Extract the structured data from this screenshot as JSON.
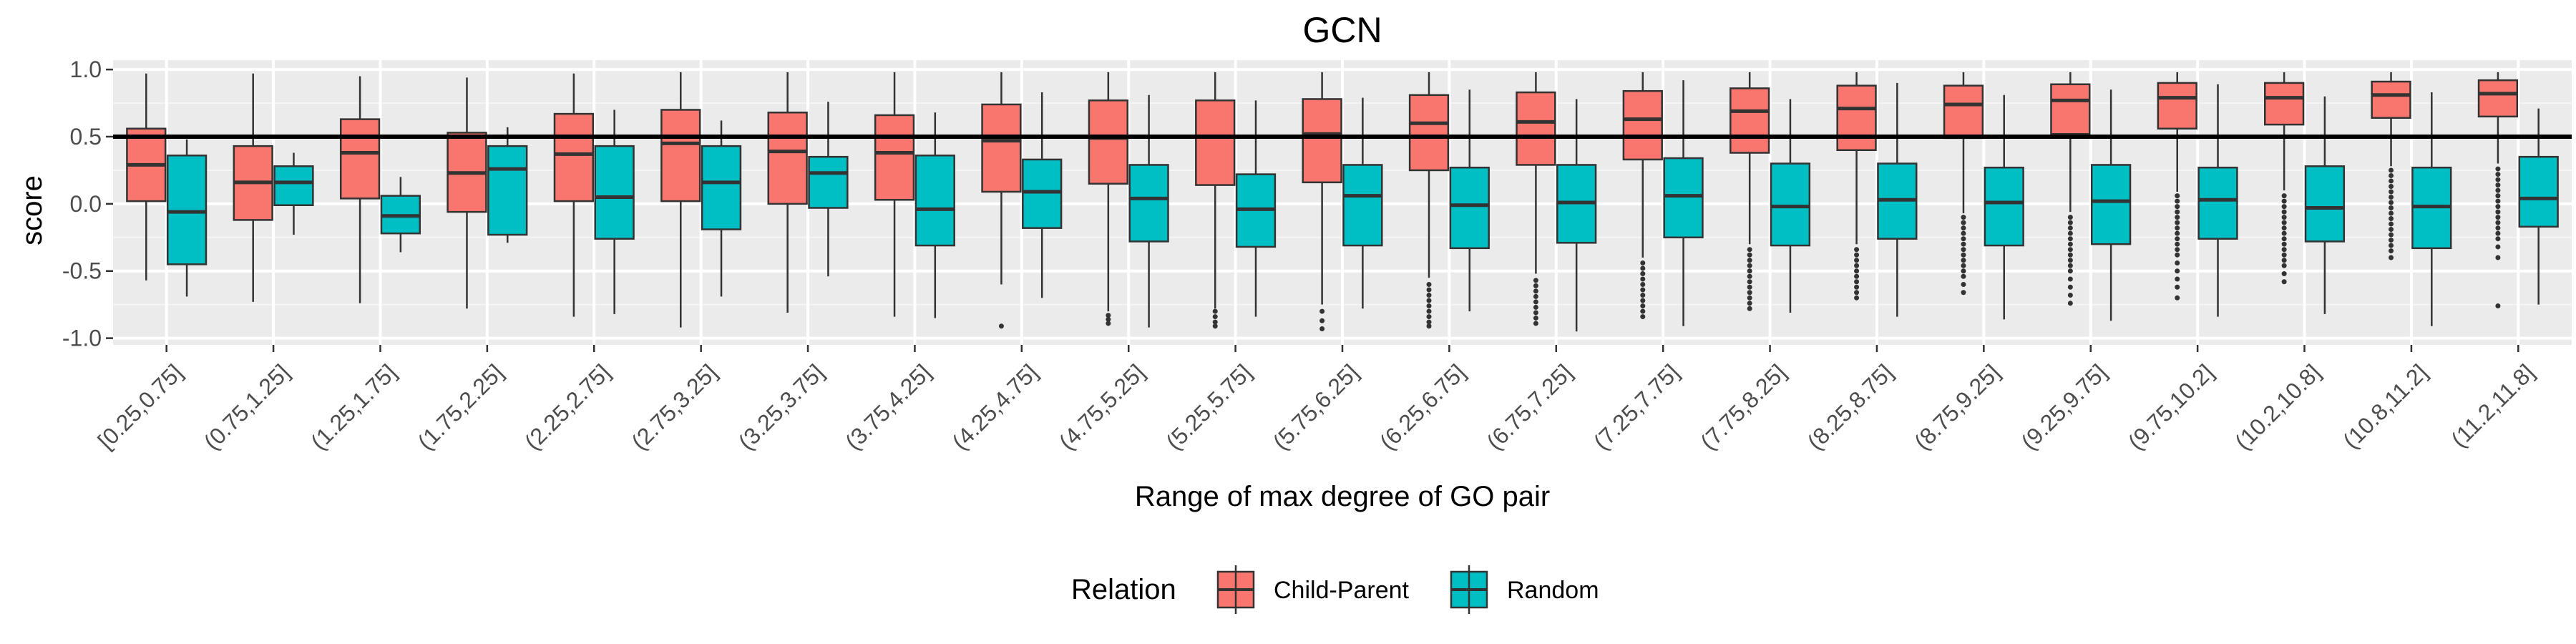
{
  "chart_data": {
    "type": "box",
    "title": "GCN",
    "xlabel": "Range of max degree of GO pair",
    "ylabel": "score",
    "ylim": [
      -1.05,
      1.07
    ],
    "yticks": [
      1.0,
      0.5,
      0.0,
      -0.5,
      -1.0
    ],
    "ytick_labels": [
      "1.0",
      "0.5",
      "0.0",
      "-0.5",
      "-1.0"
    ],
    "reference_line": 0.5,
    "grid": true,
    "legend_position": "bottom",
    "legend_title": "Relation",
    "categories": [
      "[0.25,0.75]",
      "(0.75,1.25]",
      "(1.25,1.75]",
      "(1.75,2.25]",
      "(2.25,2.75]",
      "(2.75,3.25]",
      "(3.25,3.75]",
      "(3.75,4.25]",
      "(4.25,4.75]",
      "(4.75,5.25]",
      "(5.25,5.75]",
      "(5.75,6.25]",
      "(6.25,6.75]",
      "(6.75,7.25]",
      "(7.25,7.75]",
      "(7.75,8.25]",
      "(8.25,8.75]",
      "(8.75,9.25]",
      "(9.25,9.75]",
      "(9.75,10.2]",
      "(10.2,10.8]",
      "(10.8,11.2]",
      "(11.2,11.8]"
    ],
    "series": [
      {
        "name": "Child-Parent",
        "color": "#F8766D",
        "boxes": [
          {
            "low": -0.57,
            "q1": 0.02,
            "median": 0.29,
            "q3": 0.56,
            "high": 0.97
          },
          {
            "low": -0.73,
            "q1": -0.12,
            "median": 0.16,
            "q3": 0.43,
            "high": 0.97
          },
          {
            "low": -0.74,
            "q1": 0.04,
            "median": 0.38,
            "q3": 0.63,
            "high": 0.95
          },
          {
            "low": -0.78,
            "q1": -0.06,
            "median": 0.23,
            "q3": 0.53,
            "high": 0.94
          },
          {
            "low": -0.84,
            "q1": 0.02,
            "median": 0.37,
            "q3": 0.67,
            "high": 0.97
          },
          {
            "low": -0.92,
            "q1": 0.02,
            "median": 0.45,
            "q3": 0.7,
            "high": 0.98
          },
          {
            "low": -0.81,
            "q1": 0.0,
            "median": 0.39,
            "q3": 0.68,
            "high": 0.98
          },
          {
            "low": -0.84,
            "q1": 0.03,
            "median": 0.38,
            "q3": 0.66,
            "high": 0.98
          },
          {
            "low": -0.6,
            "q1": 0.09,
            "median": 0.47,
            "q3": 0.74,
            "high": 0.98,
            "outliers": [
              -0.91
            ]
          },
          {
            "low": -0.8,
            "q1": 0.15,
            "median": 0.49,
            "q3": 0.77,
            "high": 0.98,
            "outliers": [
              -0.83,
              -0.86,
              -0.89
            ]
          },
          {
            "low": -0.78,
            "q1": 0.14,
            "median": 0.5,
            "q3": 0.77,
            "high": 0.98,
            "outliers": [
              -0.8,
              -0.84,
              -0.88,
              -0.91
            ]
          },
          {
            "low": -0.75,
            "q1": 0.16,
            "median": 0.52,
            "q3": 0.78,
            "high": 0.98,
            "outliers": [
              -0.8,
              -0.87,
              -0.93
            ]
          },
          {
            "low": -0.55,
            "q1": 0.25,
            "median": 0.6,
            "q3": 0.81,
            "high": 0.98,
            "outliers": [
              -0.6,
              -0.64,
              -0.68,
              -0.72,
              -0.76,
              -0.8,
              -0.84,
              -0.88,
              -0.91
            ]
          },
          {
            "low": -0.52,
            "q1": 0.29,
            "median": 0.61,
            "q3": 0.83,
            "high": 0.98,
            "outliers": [
              -0.57,
              -0.61,
              -0.65,
              -0.69,
              -0.73,
              -0.77,
              -0.81,
              -0.85,
              -0.89
            ]
          },
          {
            "low": -0.4,
            "q1": 0.33,
            "median": 0.63,
            "q3": 0.84,
            "high": 0.98,
            "outliers": [
              -0.44,
              -0.48,
              -0.52,
              -0.56,
              -0.6,
              -0.64,
              -0.68,
              -0.72,
              -0.76,
              -0.8,
              -0.84
            ]
          },
          {
            "low": -0.3,
            "q1": 0.38,
            "median": 0.69,
            "q3": 0.86,
            "high": 0.98,
            "outliers": [
              -0.34,
              -0.38,
              -0.42,
              -0.46,
              -0.5,
              -0.54,
              -0.58,
              -0.62,
              -0.66,
              -0.7,
              -0.74,
              -0.78
            ]
          },
          {
            "low": -0.3,
            "q1": 0.4,
            "median": 0.71,
            "q3": 0.88,
            "high": 0.98,
            "outliers": [
              -0.34,
              -0.38,
              -0.42,
              -0.46,
              -0.5,
              -0.54,
              -0.58,
              -0.62,
              -0.66,
              -0.7
            ]
          },
          {
            "low": -0.07,
            "q1": 0.49,
            "median": 0.74,
            "q3": 0.88,
            "high": 0.98,
            "outliers": [
              -0.1,
              -0.14,
              -0.18,
              -0.22,
              -0.26,
              -0.3,
              -0.34,
              -0.38,
              -0.42,
              -0.46,
              -0.5,
              -0.54,
              -0.6,
              -0.66
            ]
          },
          {
            "low": -0.06,
            "q1": 0.52,
            "median": 0.77,
            "q3": 0.89,
            "high": 0.98,
            "outliers": [
              -0.1,
              -0.14,
              -0.18,
              -0.22,
              -0.26,
              -0.3,
              -0.34,
              -0.38,
              -0.42,
              -0.46,
              -0.5,
              -0.56,
              -0.62,
              -0.68,
              -0.74
            ]
          },
          {
            "low": 0.09,
            "q1": 0.56,
            "median": 0.79,
            "q3": 0.9,
            "high": 0.98,
            "outliers": [
              0.06,
              0.02,
              -0.02,
              -0.06,
              -0.1,
              -0.14,
              -0.18,
              -0.22,
              -0.26,
              -0.3,
              -0.34,
              -0.38,
              -0.44,
              -0.5,
              -0.56,
              -0.62,
              -0.7
            ]
          },
          {
            "low": 0.1,
            "q1": 0.59,
            "median": 0.79,
            "q3": 0.9,
            "high": 0.98,
            "outliers": [
              0.06,
              0.02,
              -0.02,
              -0.06,
              -0.1,
              -0.14,
              -0.18,
              -0.22,
              -0.26,
              -0.3,
              -0.34,
              -0.38,
              -0.42,
              -0.46,
              -0.52,
              -0.58
            ]
          },
          {
            "low": 0.28,
            "q1": 0.64,
            "median": 0.81,
            "q3": 0.91,
            "high": 0.98,
            "outliers": [
              0.25,
              0.21,
              0.17,
              0.13,
              0.09,
              0.05,
              0.01,
              -0.03,
              -0.07,
              -0.11,
              -0.15,
              -0.19,
              -0.23,
              -0.27,
              -0.31,
              -0.35,
              -0.4
            ]
          },
          {
            "low": 0.3,
            "q1": 0.65,
            "median": 0.82,
            "q3": 0.92,
            "high": 0.98,
            "outliers": [
              0.26,
              0.22,
              0.18,
              0.14,
              0.1,
              0.06,
              0.02,
              -0.02,
              -0.06,
              -0.1,
              -0.14,
              -0.18,
              -0.22,
              -0.26,
              -0.32,
              -0.4,
              -0.76
            ]
          }
        ]
      },
      {
        "name": "Random",
        "color": "#00BFC4",
        "boxes": [
          {
            "low": -0.69,
            "q1": -0.45,
            "median": -0.06,
            "q3": 0.36,
            "high": 0.48
          },
          {
            "low": -0.23,
            "q1": -0.01,
            "median": 0.16,
            "q3": 0.28,
            "high": 0.38
          },
          {
            "low": -0.36,
            "q1": -0.22,
            "median": -0.09,
            "q3": 0.06,
            "high": 0.2
          },
          {
            "low": -0.29,
            "q1": -0.23,
            "median": 0.26,
            "q3": 0.43,
            "high": 0.57
          },
          {
            "low": -0.82,
            "q1": -0.26,
            "median": 0.05,
            "q3": 0.43,
            "high": 0.7
          },
          {
            "low": -0.69,
            "q1": -0.19,
            "median": 0.16,
            "q3": 0.43,
            "high": 0.62
          },
          {
            "low": -0.54,
            "q1": -0.03,
            "median": 0.23,
            "q3": 0.35,
            "high": 0.76
          },
          {
            "low": -0.85,
            "q1": -0.31,
            "median": -0.04,
            "q3": 0.36,
            "high": 0.68
          },
          {
            "low": -0.7,
            "q1": -0.18,
            "median": 0.09,
            "q3": 0.33,
            "high": 0.83
          },
          {
            "low": -0.92,
            "q1": -0.28,
            "median": 0.04,
            "q3": 0.29,
            "high": 0.81
          },
          {
            "low": -0.84,
            "q1": -0.32,
            "median": -0.04,
            "q3": 0.22,
            "high": 0.77
          },
          {
            "low": -0.78,
            "q1": -0.31,
            "median": 0.06,
            "q3": 0.29,
            "high": 0.79
          },
          {
            "low": -0.8,
            "q1": -0.33,
            "median": -0.01,
            "q3": 0.27,
            "high": 0.85
          },
          {
            "low": -0.95,
            "q1": -0.29,
            "median": 0.01,
            "q3": 0.29,
            "high": 0.78
          },
          {
            "low": -0.91,
            "q1": -0.25,
            "median": 0.06,
            "q3": 0.34,
            "high": 0.92
          },
          {
            "low": -0.81,
            "q1": -0.31,
            "median": -0.02,
            "q3": 0.3,
            "high": 0.78
          },
          {
            "low": -0.84,
            "q1": -0.26,
            "median": 0.03,
            "q3": 0.3,
            "high": 0.9
          },
          {
            "low": -0.86,
            "q1": -0.31,
            "median": 0.01,
            "q3": 0.27,
            "high": 0.81
          },
          {
            "low": -0.87,
            "q1": -0.3,
            "median": 0.02,
            "q3": 0.29,
            "high": 0.85
          },
          {
            "low": -0.84,
            "q1": -0.26,
            "median": 0.03,
            "q3": 0.27,
            "high": 0.89
          },
          {
            "low": -0.82,
            "q1": -0.28,
            "median": -0.03,
            "q3": 0.28,
            "high": 0.8
          },
          {
            "low": -0.91,
            "q1": -0.33,
            "median": -0.02,
            "q3": 0.27,
            "high": 0.83
          },
          {
            "low": -0.75,
            "q1": -0.17,
            "median": 0.04,
            "q3": 0.35,
            "high": 0.71
          }
        ]
      }
    ]
  }
}
